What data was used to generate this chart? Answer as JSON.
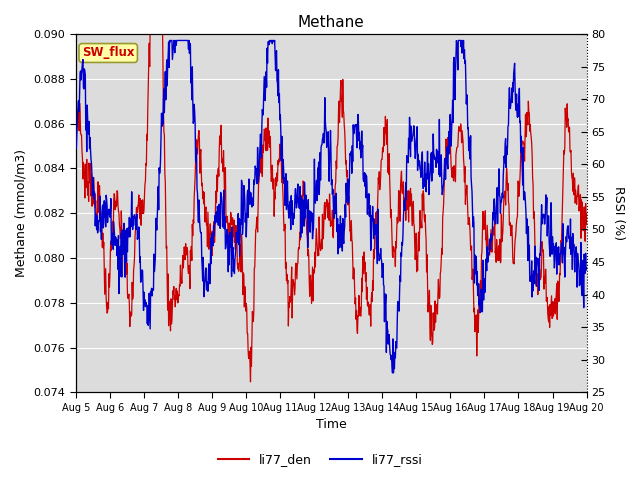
{
  "title": "Methane",
  "xlabel": "Time",
  "ylabel_left": "Methane (mmol/m3)",
  "ylabel_right": "RSSI (%)",
  "ylim_left": [
    0.074,
    0.09
  ],
  "ylim_right": [
    25,
    80
  ],
  "yticks_left": [
    0.074,
    0.076,
    0.078,
    0.08,
    0.082,
    0.084,
    0.086,
    0.088,
    0.09
  ],
  "yticks_right": [
    25,
    30,
    35,
    40,
    45,
    50,
    55,
    60,
    65,
    70,
    75,
    80
  ],
  "legend_label_red": "li77_den",
  "legend_label_blue": "li77_rssi",
  "color_red": "#cc0000",
  "color_blue": "#0000cc",
  "background_color": "#dcdcdc",
  "fig_bg": "#ffffff",
  "box_label": "SW_flux",
  "box_bg": "#ffffaa",
  "box_edge": "#999933",
  "n_days": 15,
  "n_pts_per_day": 72,
  "seed": 7
}
